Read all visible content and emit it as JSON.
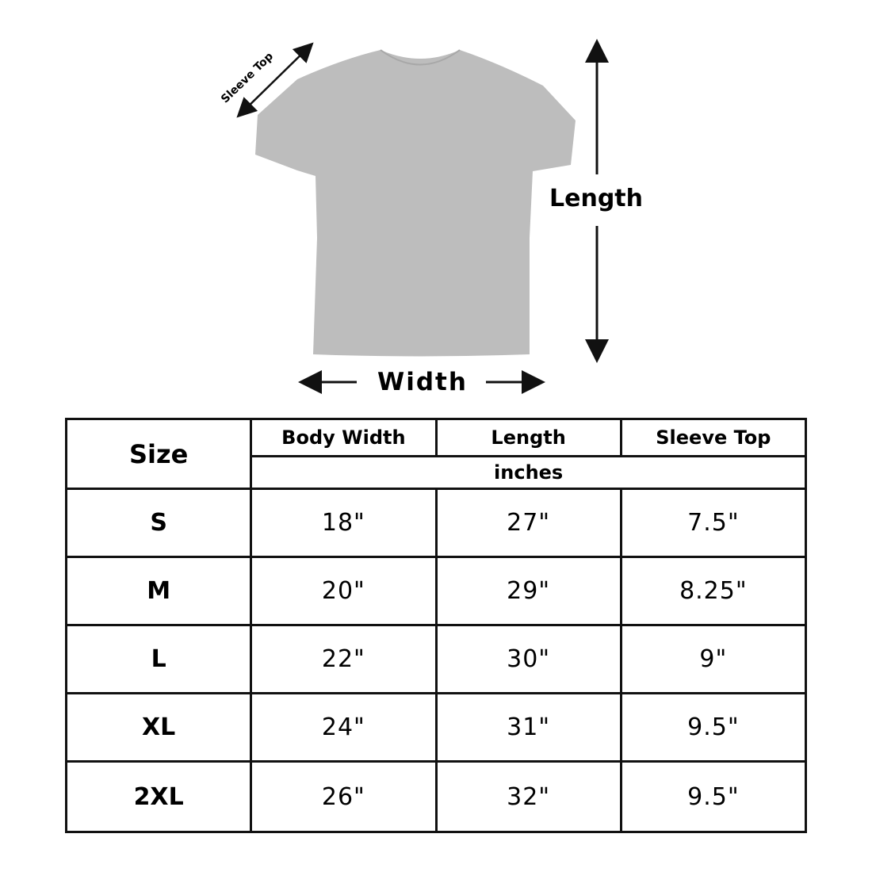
{
  "diagram": {
    "sleeve_label": "Sleeve Top",
    "length_label": "Length",
    "width_label": "Width",
    "shirt_color": "#bdbdbd"
  },
  "table": {
    "headers": {
      "size": "Size",
      "body_width": "Body Width",
      "length": "Length",
      "sleeve_top": "Sleeve Top",
      "unit": "inches"
    },
    "rows": [
      {
        "size": "S",
        "body_width": "18\"",
        "length": "27\"",
        "sleeve_top": "7.5\""
      },
      {
        "size": "M",
        "body_width": "20\"",
        "length": "29\"",
        "sleeve_top": "8.25\""
      },
      {
        "size": "L",
        "body_width": "22\"",
        "length": "30\"",
        "sleeve_top": "9\""
      },
      {
        "size": "XL",
        "body_width": "24\"",
        "length": "31\"",
        "sleeve_top": "9.5\""
      },
      {
        "size": "2XL",
        "body_width": "26\"",
        "length": "32\"",
        "sleeve_top": "9.5\""
      }
    ]
  }
}
